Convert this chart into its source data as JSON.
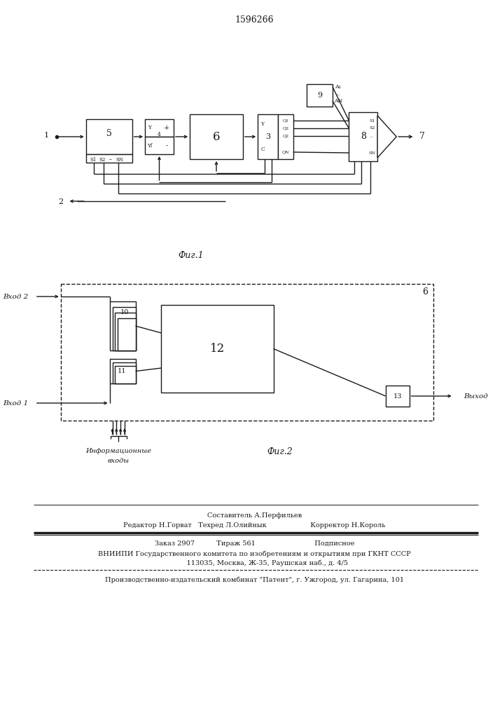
{
  "title": "1596266",
  "fig1_label": "Фиг.1",
  "fig2_label": "Фиг.2",
  "bg_color": "#ffffff",
  "line_color": "#1a1a1a",
  "footer_lines": [
    "Составитель А.Перфильев",
    "Редактор Н.Горват   Техред Л.Олийнык                    Корректор Н.Король",
    "Заказ 2907          Тираж 561                           Подписное",
    "ВНИИПИ Государственного комитета по изобретениям и открытиям при ГКНТ СССР",
    "            113035, Москва, Ж-35, Раушская наб., д. 4/5",
    "Производственно-издательский комбинат \"Патент\", г. Ужгород, ул. Гагарина, 101"
  ]
}
